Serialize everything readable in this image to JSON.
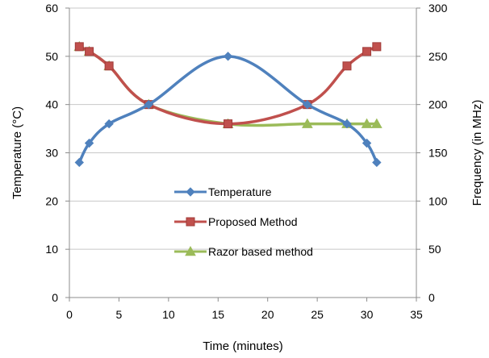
{
  "chart_data": {
    "type": "line",
    "title": "",
    "xlabel": "Time (minutes)",
    "ylabel": "Temperature (°C)",
    "y2label": "Frequency (in MHz)",
    "xlim": [
      0,
      35
    ],
    "ylim": [
      0,
      60
    ],
    "y2lim": [
      0,
      300
    ],
    "xticks": [
      0,
      5,
      10,
      15,
      20,
      25,
      30,
      35
    ],
    "yticks": [
      0,
      10,
      20,
      30,
      40,
      50,
      60
    ],
    "y2ticks": [
      0,
      50,
      100,
      150,
      200,
      250,
      300
    ],
    "grid": "horizontal",
    "legend_position": "center",
    "series": [
      {
        "name": "Temperature",
        "axis": "left",
        "color": "#4F81BD",
        "marker": "diamond",
        "x": [
          1,
          2,
          4,
          8,
          16,
          24,
          28,
          30,
          31
        ],
        "y": [
          28,
          32,
          36,
          40,
          50,
          40,
          36,
          32,
          28
        ]
      },
      {
        "name": "Proposed Method",
        "axis": "right",
        "color": "#C0504D",
        "marker": "square",
        "x": [
          1,
          2,
          4,
          8,
          16,
          24,
          28,
          30,
          31
        ],
        "y": [
          260,
          255,
          240,
          200,
          180,
          200,
          240,
          255,
          260
        ]
      },
      {
        "name": "Razor based method",
        "axis": "right",
        "color": "#9BBB59",
        "marker": "triangle",
        "x": [
          1,
          2,
          4,
          8,
          16,
          24,
          28,
          30,
          31
        ],
        "y": [
          260,
          255,
          240,
          200,
          180,
          180,
          180,
          180,
          180
        ]
      }
    ]
  }
}
